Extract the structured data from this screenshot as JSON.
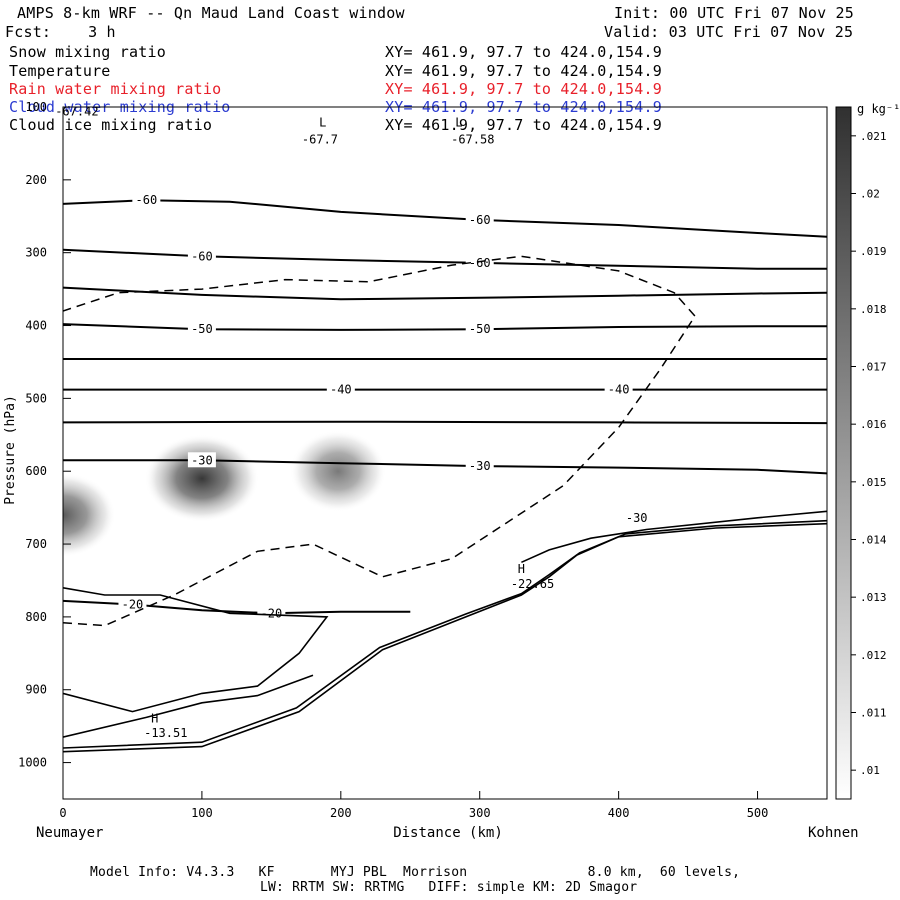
{
  "header": {
    "title": "AMPS 8-km WRF -- Qn Maud Land Coast window",
    "init": "Init: 00 UTC Fri 07 Nov 25",
    "fcst": "Fcst:    3 h",
    "valid": "Valid: 03 UTC Fri 07 Nov 25"
  },
  "fields": [
    {
      "name": "Snow mixing ratio",
      "xy": "XY= 461.9, 97.7 to 424.0,154.9",
      "color": "#000000"
    },
    {
      "name": "Temperature",
      "xy": "XY= 461.9, 97.7 to 424.0,154.9",
      "color": "#000000"
    },
    {
      "name": "Rain water mixing ratio",
      "xy": "XY= 461.9, 97.7 to 424.0,154.9",
      "color": "#e8202a"
    },
    {
      "name": "Cloud water mixing ratio",
      "xy": "XY= 461.9, 97.7 to 424.0,154.9",
      "color": "#2b3bd1"
    },
    {
      "name": "Cloud ice mixing ratio",
      "xy": "XY= 461.9, 97.7 to 424.0,154.9",
      "color": "#000000"
    }
  ],
  "chart_data": {
    "type": "heatmap",
    "xlabel": "Distance (km)",
    "ylabel": "Pressure (hPa)",
    "xlim": [
      0,
      550
    ],
    "ylim": [
      1050,
      100
    ],
    "x_ticks": [
      0,
      100,
      200,
      300,
      400,
      500
    ],
    "y_ticks": [
      100,
      200,
      300,
      400,
      500,
      600,
      700,
      800,
      900,
      1000
    ],
    "left_endpoint": "Neumayer",
    "right_endpoint": "Kohnen",
    "colorbar": {
      "unit": "g kg⁻¹",
      "ticks": [
        ".01",
        ".011",
        ".012",
        ".013",
        ".014",
        ".015",
        ".016",
        ".017",
        ".018",
        ".019",
        ".02",
        ".021"
      ],
      "range": [
        0.0095,
        0.0215
      ]
    },
    "snow_blobs": [
      {
        "x": 0,
        "p": 660,
        "max": 0.018
      },
      {
        "x": 100,
        "p": 610,
        "max": 0.021
      },
      {
        "x": 198,
        "p": 600,
        "max": 0.015
      }
    ],
    "temperature_contours": [
      {
        "label": "-60",
        "points": [
          [
            0,
            233
          ],
          [
            60,
            228
          ],
          [
            120,
            230
          ],
          [
            200,
            244
          ],
          [
            300,
            255
          ],
          [
            400,
            262
          ],
          [
            500,
            273
          ],
          [
            550,
            278
          ]
        ]
      },
      {
        "label": "-60",
        "points": [
          [
            0,
            296
          ],
          [
            100,
            305
          ],
          [
            200,
            310
          ],
          [
            300,
            314
          ],
          [
            400,
            318
          ],
          [
            500,
            322
          ],
          [
            550,
            322
          ]
        ]
      },
      {
        "label": "",
        "points": [
          [
            0,
            348
          ],
          [
            100,
            358
          ],
          [
            200,
            364
          ],
          [
            300,
            362
          ],
          [
            400,
            359
          ],
          [
            500,
            356
          ],
          [
            550,
            355
          ]
        ]
      },
      {
        "label": "-50",
        "points": [
          [
            0,
            398
          ],
          [
            100,
            405
          ],
          [
            200,
            406
          ],
          [
            300,
            405
          ],
          [
            400,
            402
          ],
          [
            500,
            401
          ],
          [
            550,
            401
          ]
        ]
      },
      {
        "label": "",
        "points": [
          [
            0,
            446
          ],
          [
            200,
            446
          ],
          [
            400,
            446
          ],
          [
            550,
            446
          ]
        ]
      },
      {
        "label": "-40",
        "points": [
          [
            0,
            488
          ],
          [
            200,
            488
          ],
          [
            400,
            488
          ],
          [
            500,
            488
          ],
          [
            550,
            488
          ]
        ]
      },
      {
        "label": "",
        "points": [
          [
            0,
            533
          ],
          [
            200,
            532
          ],
          [
            400,
            533
          ],
          [
            550,
            534
          ]
        ]
      },
      {
        "label": "-30",
        "points": [
          [
            0,
            585
          ],
          [
            100,
            585
          ],
          [
            200,
            589
          ],
          [
            300,
            593
          ],
          [
            400,
            595
          ],
          [
            500,
            598
          ],
          [
            550,
            603
          ]
        ]
      },
      {
        "label": "-20",
        "points": [
          [
            0,
            778
          ],
          [
            50,
            783
          ],
          [
            100,
            791
          ],
          [
            150,
            795
          ],
          [
            200,
            793
          ],
          [
            250,
            793
          ]
        ]
      }
    ],
    "dashed_contour": [
      [
        0,
        808
      ],
      [
        30,
        812
      ],
      [
        80,
        770
      ],
      [
        140,
        710
      ],
      [
        180,
        700
      ],
      [
        230,
        745
      ],
      [
        280,
        720
      ],
      [
        320,
        670
      ],
      [
        360,
        620
      ],
      [
        400,
        540
      ],
      [
        430,
        460
      ],
      [
        455,
        387
      ],
      [
        440,
        355
      ],
      [
        400,
        325
      ],
      [
        330,
        305
      ],
      [
        280,
        317
      ],
      [
        220,
        340
      ],
      [
        160,
        337
      ],
      [
        100,
        350
      ],
      [
        40,
        355
      ],
      [
        0,
        380
      ]
    ],
    "annotations": [
      {
        "text": "-67.42",
        "x": 10,
        "p": 112
      },
      {
        "text": "L",
        "x": 187,
        "p": 127
      },
      {
        "text": "-67.7",
        "x": 185,
        "p": 150
      },
      {
        "text": "L",
        "x": 285,
        "p": 127
      },
      {
        "text": "-67.58",
        "x": 295,
        "p": 150
      },
      {
        "text": "H",
        "x": 330,
        "p": 740
      },
      {
        "text": "-22.65",
        "x": 338,
        "p": 760
      },
      {
        "text": "H",
        "x": 66,
        "p": 945
      },
      {
        "text": "-13.51",
        "x": 74,
        "p": 965
      },
      {
        "text": "-30",
        "x": 413,
        "p": 670
      }
    ]
  },
  "footer": {
    "line1": "Model Info: V4.3.3   KF       MYJ PBL  Morrison               8.0 km,  60 levels,",
    "line2": "LW: RRTM SW: RRTMG   DIFF: simple KM: 2D Smagor"
  }
}
